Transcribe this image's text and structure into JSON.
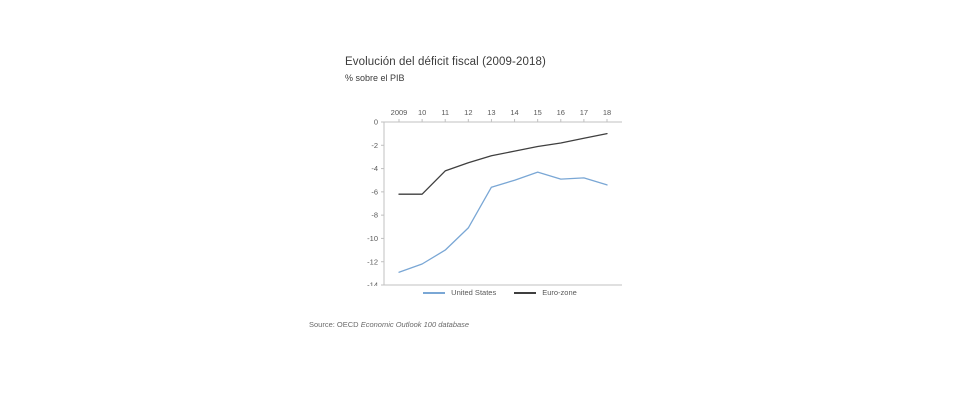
{
  "header": {
    "title": "Evolución del déficit fiscal (2009-2018)",
    "subtitle": "% sobre el PIB"
  },
  "source": {
    "prefix": "Source: OECD ",
    "reference": "Economic Outlook 100 database"
  },
  "chart_data": {
    "type": "line",
    "title": "Evolución del déficit fiscal (2009-2018)",
    "subtitle": "% sobre el PIB",
    "categories": [
      "2009",
      "10",
      "11",
      "12",
      "13",
      "14",
      "15",
      "16",
      "17",
      "18"
    ],
    "series": [
      {
        "name": "United States",
        "color": "#7aa7d5",
        "values": [
          -12.9,
          -12.2,
          -11.0,
          -9.1,
          -5.6,
          -5.0,
          -4.3,
          -4.9,
          -4.8,
          -5.4
        ]
      },
      {
        "name": "Euro-zone",
        "color": "#3f3f3f",
        "values": [
          -6.2,
          -6.2,
          -4.2,
          -3.5,
          -2.9,
          -2.5,
          -2.1,
          -1.8,
          -1.4,
          -1.0
        ]
      }
    ],
    "ylim": [
      -14,
      0
    ],
    "yticks": [
      0,
      -2,
      -4,
      -6,
      -8,
      -10,
      -12,
      -14
    ],
    "grid": false,
    "legend_position": "bottom",
    "axis_color": "#c0c0c0",
    "label_color": "#595959"
  }
}
